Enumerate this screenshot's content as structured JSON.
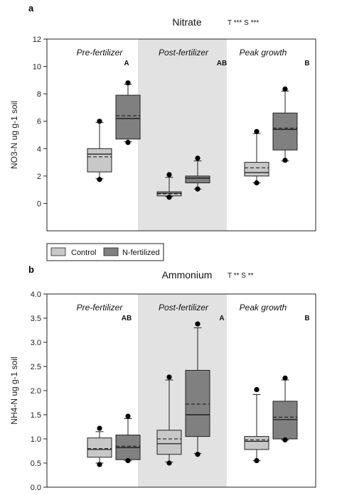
{
  "chart_data": [
    {
      "type": "box",
      "panel": "a",
      "title": "Nitrate",
      "significance": "T *** S ***",
      "ylabel": "NO3-N ug g-1 soil",
      "ylim": [
        -2,
        12
      ],
      "yticks": [
        0,
        2,
        4,
        6,
        8,
        10,
        12
      ],
      "ytick_labels": [
        "0",
        "2",
        "4",
        "6",
        "8",
        "10",
        "12"
      ],
      "periods": [
        {
          "label": "Pre-fertilizer",
          "letter": "A",
          "shaded": false
        },
        {
          "label": "Post-fertilizer",
          "letter": "AB",
          "shaded": true
        },
        {
          "label": "Peak growth",
          "letter": "B",
          "shaded": false
        }
      ],
      "series": [
        {
          "name": "Control",
          "color": "#c8c8c8",
          "boxes": [
            {
              "min": 1.8,
              "q1": 2.3,
              "median": 3.6,
              "mean": 3.4,
              "q3": 4.0,
              "max": 5.9,
              "outliers": [
                6.0,
                1.75
              ]
            },
            {
              "min": 0.5,
              "q1": 0.55,
              "median": 0.75,
              "mean": 0.7,
              "q3": 0.85,
              "max": 1.9,
              "outliers": [
                2.1,
                0.45
              ]
            },
            {
              "min": 1.5,
              "q1": 2.0,
              "median": 2.25,
              "mean": 2.6,
              "q3": 3.0,
              "max": 5.1,
              "outliers": [
                5.25,
                1.5
              ]
            }
          ]
        },
        {
          "name": "N-fertilized",
          "color": "#808080",
          "boxes": [
            {
              "min": 4.5,
              "q1": 4.7,
              "median": 6.2,
              "mean": 6.4,
              "q3": 7.9,
              "max": 8.7,
              "outliers": [
                8.8,
                4.45
              ]
            },
            {
              "min": 1.05,
              "q1": 1.5,
              "median": 1.85,
              "mean": 1.85,
              "q3": 2.0,
              "max": 3.1,
              "outliers": [
                3.3,
                1.05
              ]
            },
            {
              "min": 3.1,
              "q1": 3.9,
              "median": 5.4,
              "mean": 5.5,
              "q3": 6.6,
              "max": 8.2,
              "outliers": [
                8.35,
                3.15
              ]
            }
          ]
        }
      ]
    },
    {
      "type": "box",
      "panel": "b",
      "title": "Ammonium",
      "significance": "T ** S **",
      "ylabel": "NH4-N ug g-1 soil",
      "ylim": [
        0,
        4.0
      ],
      "yticks": [
        0,
        0.5,
        1.0,
        1.5,
        2.0,
        2.5,
        3.0,
        3.5,
        4.0
      ],
      "ytick_labels": [
        "0.0",
        "0.5",
        "1.0",
        "1.5",
        "2.0",
        "2.5",
        "3.0",
        "3.5",
        "4.0"
      ],
      "periods": [
        {
          "label": "Pre-fertilizer",
          "letter": "AB",
          "shaded": false
        },
        {
          "label": "Post-fertilizer",
          "letter": "A",
          "shaded": true
        },
        {
          "label": "Peak growth",
          "letter": "B",
          "shaded": false
        }
      ],
      "series": [
        {
          "name": "Control",
          "color": "#c8c8c8",
          "boxes": [
            {
              "min": 0.5,
              "q1": 0.62,
              "median": 0.78,
              "mean": 0.8,
              "q3": 1.02,
              "max": 1.15,
              "outliers": [
                1.22,
                0.47
              ]
            },
            {
              "min": 0.52,
              "q1": 0.68,
              "median": 0.9,
              "mean": 1.0,
              "q3": 1.18,
              "max": 2.22,
              "outliers": [
                2.28,
                0.5
              ]
            },
            {
              "min": 0.55,
              "q1": 0.78,
              "median": 0.95,
              "mean": 0.98,
              "q3": 1.05,
              "max": 1.92,
              "outliers": [
                2.02,
                0.55
              ]
            }
          ]
        },
        {
          "name": "N-fertilized",
          "color": "#808080",
          "boxes": [
            {
              "min": 0.55,
              "q1": 0.57,
              "median": 0.82,
              "mean": 0.85,
              "q3": 1.08,
              "max": 1.42,
              "outliers": [
                1.47,
                0.55
              ]
            },
            {
              "min": 0.7,
              "q1": 1.05,
              "median": 1.5,
              "mean": 1.72,
              "q3": 2.42,
              "max": 3.3,
              "outliers": [
                3.38,
                0.68
              ]
            },
            {
              "min": 0.98,
              "q1": 1.0,
              "median": 1.4,
              "mean": 1.45,
              "q3": 1.78,
              "max": 2.22,
              "outliers": [
                2.26,
                0.98
              ]
            }
          ]
        }
      ]
    }
  ],
  "legend": {
    "items": [
      {
        "label": "Control",
        "color": "#c8c8c8"
      },
      {
        "label": "N-fertilized",
        "color": "#808080"
      }
    ]
  },
  "colors": {
    "shade": "#e2e2e2"
  }
}
